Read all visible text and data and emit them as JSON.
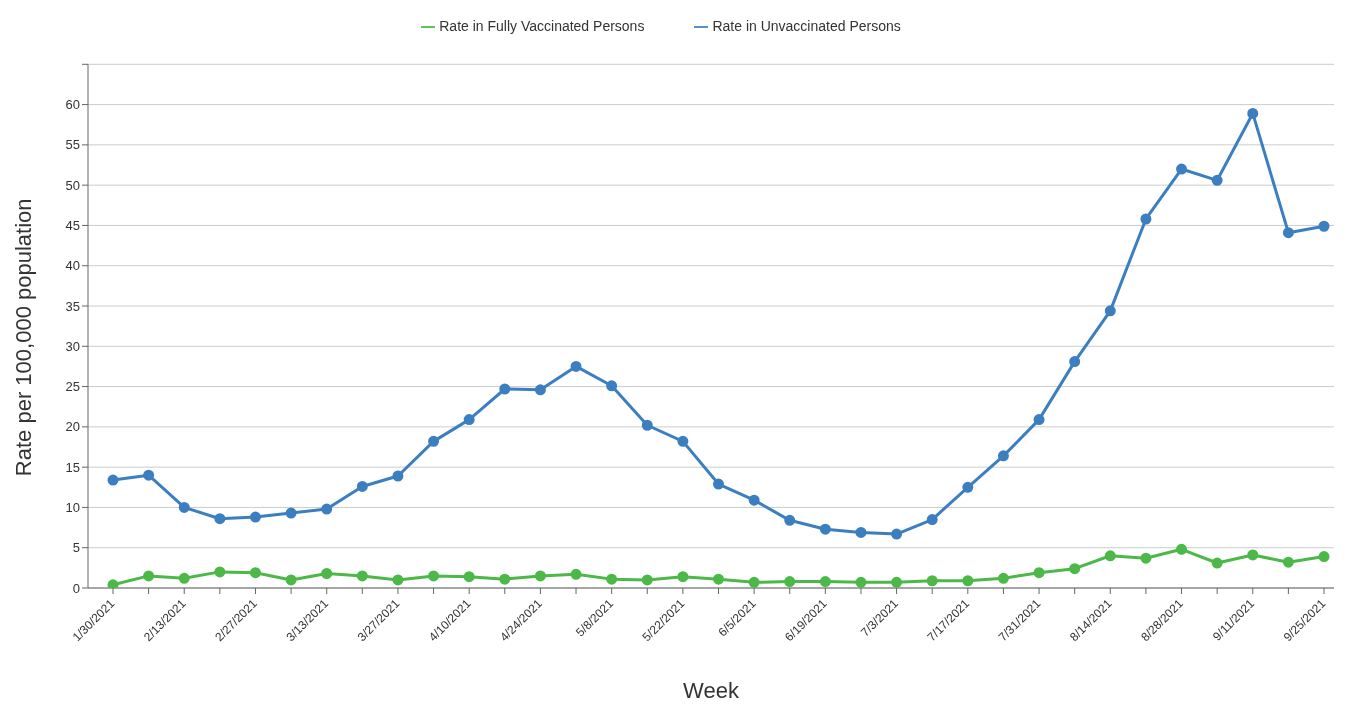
{
  "chart_data": {
    "type": "line",
    "xlabel": "Week",
    "ylabel": "Rate per 100,000 population",
    "categories": [
      "1/30/2021",
      null,
      "2/13/2021",
      null,
      "2/27/2021",
      null,
      "3/13/2021",
      null,
      "3/27/2021",
      null,
      "4/10/2021",
      null,
      "4/24/2021",
      null,
      "5/8/2021",
      null,
      "5/22/2021",
      null,
      "6/5/2021",
      null,
      "6/19/2021",
      null,
      "7/3/2021",
      null,
      "7/17/2021",
      null,
      "7/31/2021",
      null,
      "8/14/2021",
      null,
      "8/28/2021",
      null,
      "9/11/2021",
      null,
      "9/25/2021"
    ],
    "series": [
      {
        "name": "Rate in Fully Vaccinated Persons",
        "color": "#4cb848",
        "values": [
          0.4,
          1.5,
          1.2,
          2.0,
          1.9,
          1.0,
          1.8,
          1.5,
          1.0,
          1.5,
          1.4,
          1.1,
          1.5,
          1.7,
          1.1,
          1.0,
          1.4,
          1.1,
          0.7,
          0.8,
          0.8,
          0.7,
          0.7,
          0.9,
          0.9,
          1.2,
          1.9,
          2.4,
          4.0,
          3.7,
          4.8,
          3.1,
          4.1,
          3.2,
          3.9
        ]
      },
      {
        "name": "Rate in Unvaccinated Persons",
        "color": "#3b7fc0",
        "values": [
          13.4,
          14.0,
          10.0,
          8.6,
          8.8,
          9.3,
          9.8,
          12.6,
          13.9,
          18.2,
          20.9,
          24.7,
          24.6,
          27.5,
          25.1,
          20.2,
          18.2,
          12.9,
          10.9,
          8.4,
          7.3,
          6.9,
          6.7,
          8.5,
          12.5,
          16.4,
          20.9,
          28.1,
          34.4,
          45.8,
          52.0,
          50.6,
          58.9,
          44.1,
          44.9
        ]
      }
    ],
    "ylim": [
      0,
      65
    ],
    "yticks": [
      0,
      5,
      10,
      15,
      20,
      25,
      30,
      35,
      40,
      45,
      50,
      55,
      60,
      {
        "value": 65,
        "label": null
      }
    ],
    "grid": "y",
    "legend": "top",
    "marker": "circle",
    "line_style": "solid"
  }
}
